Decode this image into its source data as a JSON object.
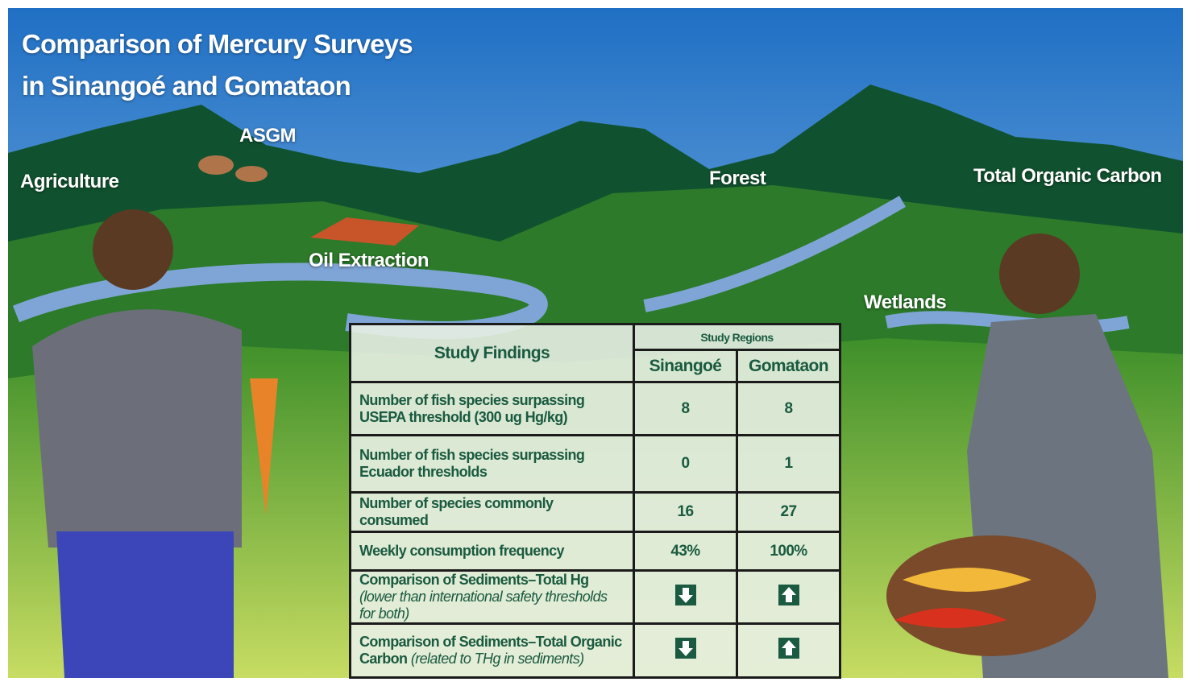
{
  "header": {
    "title_lines": [
      "Comparison of Mercury Surveys",
      "in Sinangoé and Gomataon"
    ]
  },
  "labels": [
    "Agriculture",
    "ASGM",
    "Oil Extraction",
    "Forest",
    "Total Organic Carbon",
    "Wetlands"
  ],
  "table": {
    "findings_header": "Study Findings",
    "regions_header": "Study Regions",
    "columns": [
      "Sinangoé",
      "Gomataon"
    ],
    "rows": [
      {
        "finding": "Number of fish species surpassing USEPA threshold (300 ug Hg/kg)",
        "values": [
          8,
          8
        ]
      },
      {
        "finding": "Number of fish species surpassing Ecuador thresholds",
        "values": [
          0,
          1
        ]
      },
      {
        "finding": "Number of species commonly consumed",
        "values": [
          16,
          27
        ]
      },
      {
        "finding": "Weekly consumption frequency",
        "values": [
          "43%",
          "100%"
        ]
      },
      {
        "finding": "Comparison of Sediments–Total Hg",
        "note": "(lower than international safety thresholds for both)"
      },
      {
        "finding": "Comparison of Sediments–Total Organic Carbon",
        "note": "(related to THg in sediments)"
      }
    ]
  }
}
